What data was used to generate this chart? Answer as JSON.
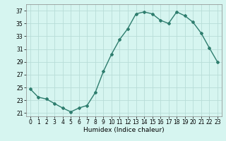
{
  "x": [
    0,
    1,
    2,
    3,
    4,
    5,
    6,
    7,
    8,
    9,
    10,
    11,
    12,
    13,
    14,
    15,
    16,
    17,
    18,
    19,
    20,
    21,
    22,
    23
  ],
  "y": [
    24.8,
    23.5,
    23.2,
    22.5,
    21.8,
    21.2,
    21.8,
    22.2,
    24.2,
    27.5,
    30.2,
    32.5,
    34.2,
    36.5,
    36.8,
    36.5,
    35.5,
    35.0,
    36.8,
    36.2,
    35.2,
    33.5,
    31.2,
    29.0
  ],
  "xlabel": "Humidex (Indice chaleur)",
  "xlim": [
    -0.5,
    23.5
  ],
  "ylim": [
    20.5,
    38
  ],
  "yticks": [
    21,
    23,
    25,
    27,
    29,
    31,
    33,
    35,
    37
  ],
  "xticks": [
    0,
    1,
    2,
    3,
    4,
    5,
    6,
    7,
    8,
    9,
    10,
    11,
    12,
    13,
    14,
    15,
    16,
    17,
    18,
    19,
    20,
    21,
    22,
    23
  ],
  "line_color": "#2e7d6e",
  "marker": "D",
  "markersize": 2.0,
  "linewidth": 1.0,
  "bg_color": "#d6f5f0",
  "grid_color": "#b8ddd7",
  "label_fontsize": 6.5,
  "tick_fontsize": 5.5
}
